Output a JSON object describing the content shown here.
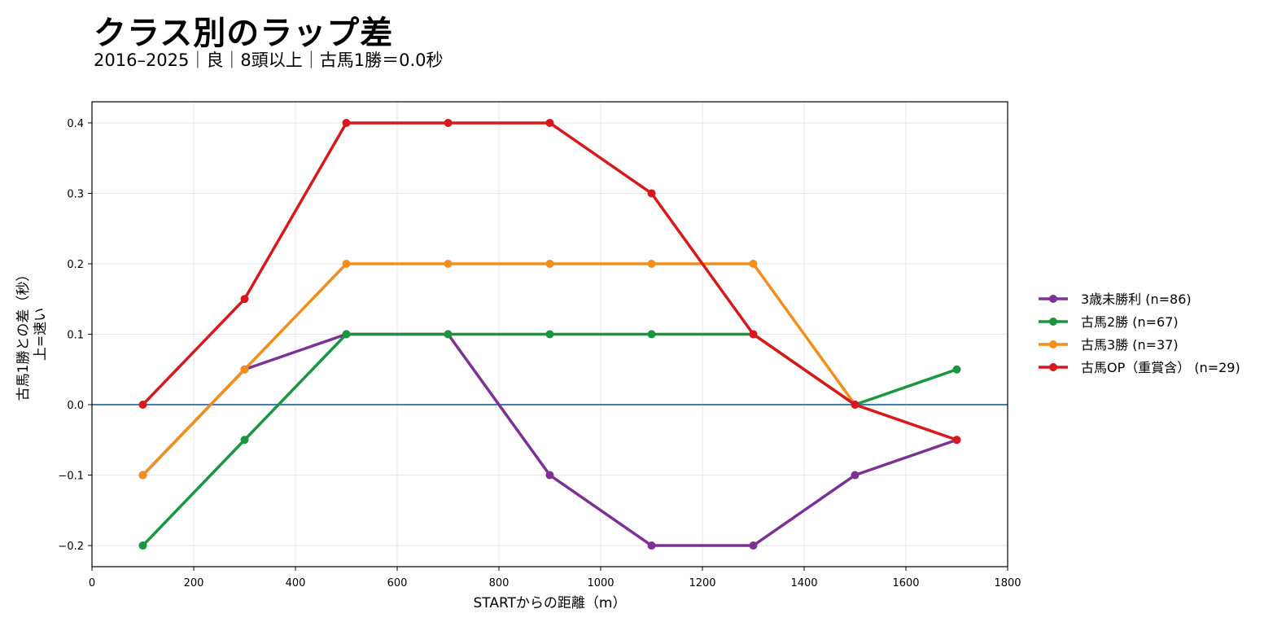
{
  "title": "クラス別のラップ差",
  "subtitle": "2016–2025｜良｜8頭以上｜古馬1勝＝0.0秒",
  "chart_data": {
    "type": "line",
    "xlabel": "STARTからの距離（m）",
    "ylabel_line1": "古馬1勝との差（秒）",
    "ylabel_line2": "上=速い",
    "xlim": [
      0,
      1800
    ],
    "ylim": [
      -0.23,
      0.43
    ],
    "xticks": [
      0,
      200,
      400,
      600,
      800,
      1000,
      1200,
      1400,
      1600,
      1800
    ],
    "yticks": [
      -0.2,
      -0.1,
      0.0,
      0.1,
      0.2,
      0.3,
      0.4
    ],
    "ytick_labels": [
      "−0.2",
      "−0.1",
      "0.0",
      "0.1",
      "0.2",
      "0.3",
      "0.4"
    ],
    "grid": true,
    "legend_position": "right",
    "reference_line": {
      "y": 0.0,
      "color": "#3b80b9"
    },
    "series": [
      {
        "name": "3歳未勝利 (n=86)",
        "color": "#7b3294",
        "x": [
          100,
          300,
          500,
          700,
          900,
          1100,
          1300,
          1500,
          1700
        ],
        "y": [
          -0.1,
          0.05,
          0.1,
          0.1,
          -0.1,
          -0.2,
          -0.2,
          -0.1,
          -0.05
        ]
      },
      {
        "name": "古馬2勝 (n=67)",
        "color": "#1a9641",
        "x": [
          100,
          300,
          500,
          700,
          900,
          1100,
          1300,
          1500,
          1700
        ],
        "y": [
          -0.2,
          -0.05,
          0.1,
          0.1,
          0.1,
          0.1,
          0.1,
          0.0,
          0.05
        ]
      },
      {
        "name": "古馬3勝 (n=37)",
        "color": "#f28e1c",
        "x": [
          100,
          300,
          500,
          700,
          900,
          1100,
          1300,
          1500
        ],
        "y": [
          -0.1,
          0.05,
          0.2,
          0.2,
          0.2,
          0.2,
          0.2,
          0.0
        ]
      },
      {
        "name": "古馬OP（重賞含） (n=29)",
        "color": "#d7191c",
        "x": [
          100,
          300,
          500,
          700,
          900,
          1100,
          1300,
          1500,
          1700
        ],
        "y": [
          0.0,
          0.15,
          0.4,
          0.4,
          0.4,
          0.3,
          0.1,
          0.0,
          -0.05
        ]
      }
    ]
  }
}
